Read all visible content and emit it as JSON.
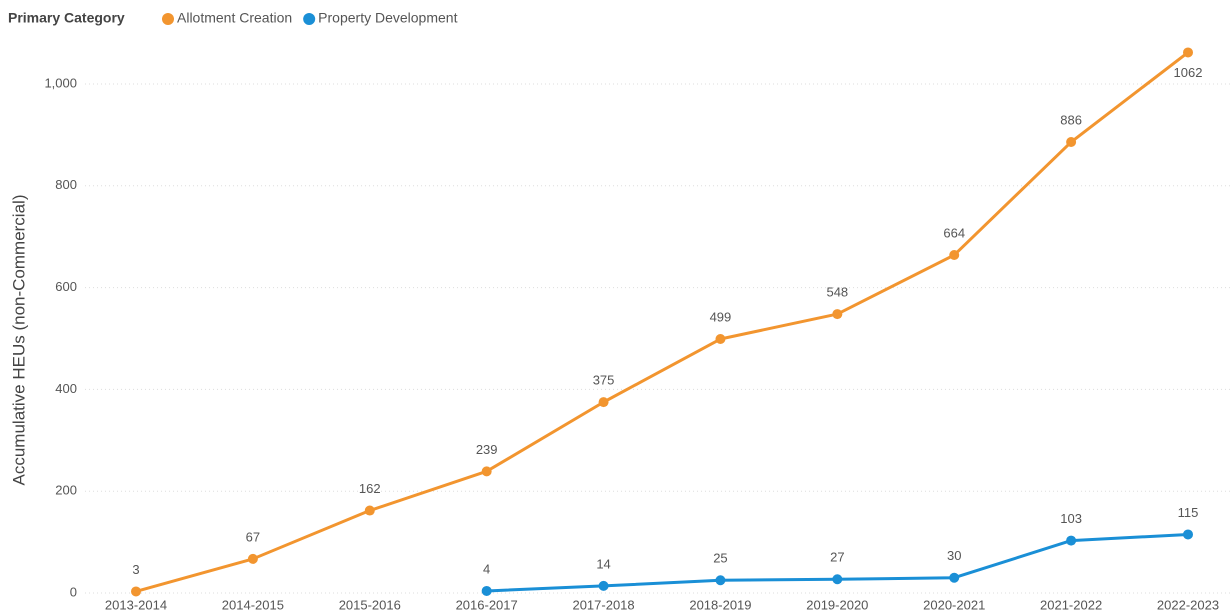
{
  "chart_data": {
    "type": "line",
    "legend_title": "Primary Category",
    "y_label": "Accumulative HEUs (non-Commercial)",
    "categories": [
      "2013-2014",
      "2014-2015",
      "2015-2016",
      "2016-2017",
      "2017-2018",
      "2018-2019",
      "2019-2020",
      "2020-2021",
      "2021-2022",
      "2022-2023"
    ],
    "series": [
      {
        "name": "Allotment Creation",
        "color": "#f2952f",
        "values": [
          3,
          67,
          162,
          239,
          375,
          499,
          548,
          664,
          886,
          1062
        ]
      },
      {
        "name": "Property Development",
        "color": "#1a8fd6",
        "values": [
          null,
          null,
          null,
          4,
          14,
          25,
          27,
          30,
          103,
          115
        ]
      }
    ],
    "ylim": [
      0,
      1000
    ],
    "yticks": [
      0,
      200,
      400,
      600,
      800,
      {
        "value": 1000,
        "label": "1,000"
      }
    ],
    "grid": true,
    "legend": "top-left",
    "data_labels": true
  }
}
